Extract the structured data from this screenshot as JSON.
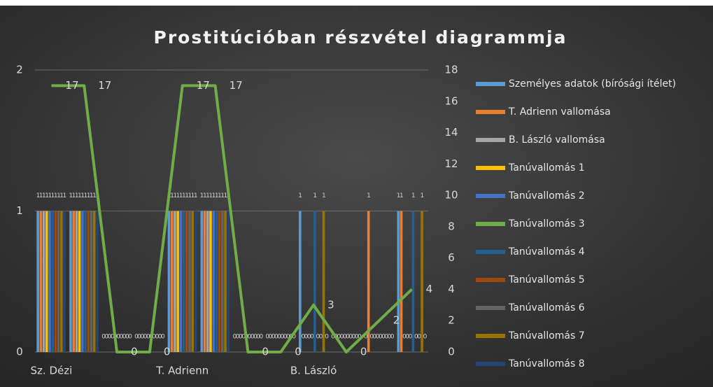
{
  "chart_data": {
    "type": "bar",
    "title": "Prostitúcióban részvétel diagrammja",
    "categories": [
      "Sz. Dézi",
      null,
      null,
      null,
      "T. Adrienn",
      null,
      null,
      null,
      "B. László",
      null,
      null,
      null
    ],
    "ylim": [
      0,
      2
    ],
    "yticks": [
      0,
      1,
      2
    ],
    "y2lim": [
      0,
      18
    ],
    "y2ticks": [
      0,
      2,
      4,
      6,
      8,
      10,
      12,
      14,
      16,
      18
    ],
    "grid": true,
    "legend": "right",
    "series": [
      {
        "name": "Személyes adatok (bírósági ítélet)",
        "color": "#5b9bd5",
        "values": [
          1,
          1,
          0,
          0,
          1,
          1,
          0,
          0,
          1,
          0,
          0,
          1
        ]
      },
      {
        "name": "T. Adrienn vallomása",
        "color": "#ed7d31",
        "values": [
          1,
          1,
          0,
          0,
          1,
          1,
          0,
          0,
          0,
          0,
          1,
          1
        ]
      },
      {
        "name": "B. László vallomása",
        "color": "#a5a5a5",
        "values": [
          1,
          1,
          0,
          0,
          1,
          1,
          0,
          0,
          0,
          0,
          0,
          0
        ]
      },
      {
        "name": "Tanúvallomás 1",
        "color": "#ffc000",
        "values": [
          1,
          1,
          0,
          0,
          1,
          1,
          0,
          0,
          0,
          0,
          0,
          0
        ]
      },
      {
        "name": "Tanúvallomás 2",
        "color": "#4472c4",
        "values": [
          1,
          1,
          0,
          0,
          1,
          1,
          0,
          0,
          0,
          0,
          0,
          0
        ]
      },
      {
        "name": "Tanúvallomás 3",
        "color": "#70ad47",
        "type": "line",
        "axis": "y2",
        "values": [
          17,
          17,
          0,
          0,
          17,
          17,
          0,
          0,
          3,
          0,
          2,
          4
        ]
      },
      {
        "name": "Tanúvallomás 4",
        "color": "#255e91",
        "values": [
          1,
          1,
          0,
          0,
          1,
          1,
          0,
          0,
          1,
          0,
          0,
          1
        ]
      },
      {
        "name": "Tanúvallomás 5",
        "color": "#9e480e",
        "values": [
          1,
          1,
          0,
          0,
          1,
          1,
          0,
          0,
          0,
          0,
          0,
          0
        ]
      },
      {
        "name": "Tanúvallomás 6",
        "color": "#636363",
        "values": [
          1,
          1,
          0,
          0,
          1,
          1,
          0,
          0,
          0,
          0,
          0,
          0
        ]
      },
      {
        "name": "Tanúvallomás 7",
        "color": "#997300",
        "values": [
          1,
          1,
          0,
          0,
          1,
          1,
          0,
          0,
          1,
          0,
          0,
          1
        ]
      },
      {
        "name": "Tanúvallomás 8",
        "color": "#264478",
        "values": [
          1,
          1,
          0,
          0,
          1,
          1,
          0,
          0,
          0,
          0,
          0,
          0
        ]
      }
    ]
  }
}
